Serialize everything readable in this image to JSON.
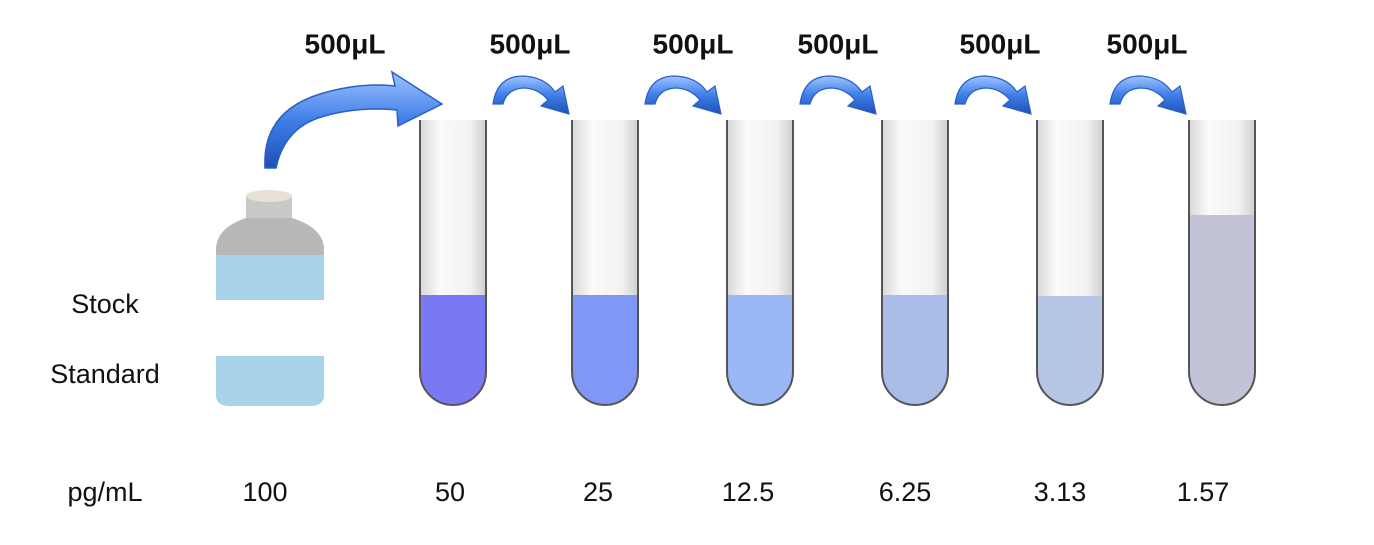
{
  "transfer_labels": [
    "500μL",
    "500μL",
    "500μL",
    "500μL",
    "500μL",
    "500μL"
  ],
  "stock_label": [
    "Stock",
    "Standard"
  ],
  "unit_label": "pg/mL",
  "concentrations": [
    "100",
    "50",
    "25",
    "12.5",
    "6.25",
    "3.13",
    "1.57"
  ]
}
